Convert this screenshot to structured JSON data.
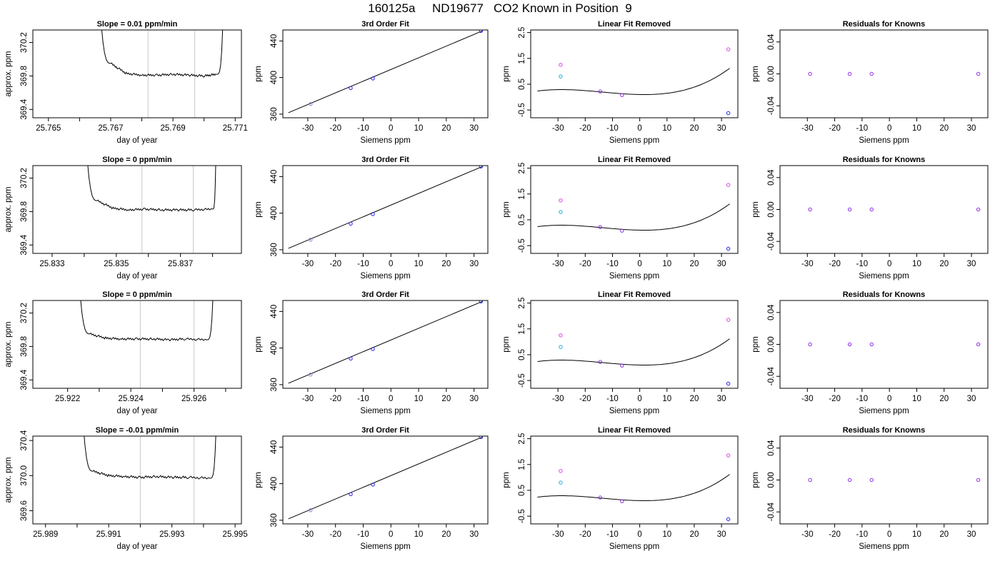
{
  "figure": {
    "title": "160125a     ND19677   CO2 Known in Position  9",
    "colors": {
      "line": "#000000",
      "frame": "#000000",
      "window_lines": "#c8c8c8",
      "point_blue": "#2222ee",
      "point_purple": "#8a2be2",
      "point_magenta": "#dd44dd",
      "point_cyan": "#22aadd",
      "point_violet": "#9a7de0"
    }
  },
  "chart_data": [
    {
      "type": "line",
      "row": 1,
      "panel": "trace",
      "title": "Slope =  0.01  ppm/min",
      "xlabel": "day of year",
      "ylabel": "approx. ppm",
      "xlim": [
        25.7645,
        25.7712
      ],
      "ylim": [
        369.3,
        370.35
      ],
      "xticks": [
        25.765,
        25.766,
        25.767,
        25.768,
        25.769,
        25.77,
        25.771
      ],
      "xtick_labels": [
        "25.765",
        "",
        "25.767",
        "",
        "25.769",
        "",
        "25.771"
      ],
      "yticks": [
        369.4,
        369.8,
        370.2
      ],
      "ytick_labels": [
        "369.4",
        "369.8",
        "370.2"
      ],
      "window": [
        25.7682,
        25.7697
      ],
      "x": [
        25.7667,
        25.767,
        25.7675,
        25.768,
        25.7685,
        25.769,
        25.7695,
        25.77,
        25.7704,
        25.7706
      ],
      "y": [
        370.4,
        369.95,
        369.83,
        369.81,
        369.81,
        369.82,
        369.81,
        369.8,
        369.82,
        370.4
      ]
    },
    {
      "type": "scatter",
      "row": 1,
      "panel": "fit",
      "title": "3rd Order Fit",
      "xlabel": "Siemens ppm",
      "ylabel": "ppm",
      "xlim": [
        -39,
        35
      ],
      "ylim": [
        356,
        452
      ],
      "xticks": [
        -30,
        -20,
        -10,
        0,
        10,
        20,
        30
      ],
      "yticks": [
        360,
        400,
        440
      ],
      "line_x": [
        -37,
        33
      ],
      "line_y": [
        361.5,
        451
      ],
      "points": [
        {
          "x": -29,
          "y": 371,
          "color": "point_violet"
        },
        {
          "x": -14.5,
          "y": 388.5,
          "color": "point_blue"
        },
        {
          "x": -6.5,
          "y": 399,
          "color": "point_blue"
        },
        {
          "x": 32.5,
          "y": 451,
          "color": "point_blue"
        }
      ]
    },
    {
      "type": "scatter",
      "row": 1,
      "panel": "linear_removed",
      "title": "Linear Fit Removed",
      "xlabel": "Siemens ppm",
      "ylabel": "ppm",
      "xlim": [
        -40,
        36
      ],
      "ylim": [
        -0.8,
        2.6
      ],
      "xticks": [
        -30,
        -20,
        -10,
        0,
        10,
        20,
        30
      ],
      "yticks": [
        -0.5,
        0.5,
        1.5,
        2.5
      ],
      "ytick_labels": [
        "-0.5",
        "0.5",
        "1.5",
        "2.5"
      ],
      "curve": [
        -8.214e-07,
        0.0005914,
        0.0,
        0.0
      ],
      "curve_coeffs": [
        0.1,
        -0.002,
        0.00055,
        1.35e-05
      ],
      "curve_xrange": [
        -37.5,
        33
      ],
      "points": [
        {
          "x": -29,
          "y": 1.25,
          "color": "point_magenta"
        },
        {
          "x": -29,
          "y": 0.8,
          "color": "point_cyan"
        },
        {
          "x": -14.5,
          "y": 0.22,
          "color": "point_purple"
        },
        {
          "x": -6.5,
          "y": 0.08,
          "color": "point_purple"
        },
        {
          "x": 32.5,
          "y": 1.85,
          "color": "point_magenta"
        },
        {
          "x": 32.5,
          "y": -0.62,
          "color": "point_blue"
        }
      ]
    },
    {
      "type": "scatter",
      "row": 1,
      "panel": "residuals",
      "title": "Residuals for Knowns",
      "xlabel": "Siemens ppm",
      "ylabel": "ppm",
      "xlim": [
        -40,
        36
      ],
      "ylim": [
        -0.055,
        0.055
      ],
      "xticks": [
        -30,
        -20,
        -10,
        0,
        10,
        20,
        30
      ],
      "yticks": [
        -0.04,
        0.0,
        0.04
      ],
      "ytick_labels": [
        "-0.04",
        "0.00",
        "0.04"
      ],
      "points": [
        {
          "x": -29,
          "y": 0,
          "color": "point_purple"
        },
        {
          "x": -14.5,
          "y": 0,
          "color": "point_purple"
        },
        {
          "x": -6.5,
          "y": 0,
          "color": "point_purple"
        },
        {
          "x": 32.5,
          "y": 0,
          "color": "point_purple"
        }
      ]
    },
    {
      "type": "line",
      "row": 2,
      "panel": "trace",
      "title": "Slope =  0  ppm/min",
      "xlabel": "day of year",
      "ylabel": "approx. ppm",
      "xlim": [
        25.8324,
        25.8389
      ],
      "ylim": [
        369.3,
        370.35
      ],
      "xticks": [
        25.833,
        25.834,
        25.835,
        25.836,
        25.837,
        25.838
      ],
      "xtick_labels": [
        "25.833",
        "",
        "25.835",
        "",
        "25.837",
        ""
      ],
      "yticks": [
        369.4,
        369.8,
        370.2
      ],
      "ytick_labels": [
        "369.4",
        "369.8",
        "370.2"
      ],
      "window": [
        25.8358,
        25.8374
      ],
      "x": [
        25.8341,
        25.8344,
        25.8349,
        25.8354,
        25.8359,
        25.8364,
        25.8369,
        25.8374,
        25.838,
        25.8381
      ],
      "y": [
        370.4,
        369.93,
        369.84,
        369.82,
        369.83,
        369.82,
        369.82,
        369.82,
        369.83,
        370.4
      ]
    },
    {
      "type": "scatter",
      "row": 2,
      "panel": "fit",
      "title": "3rd Order Fit",
      "xlabel": "Siemens ppm",
      "ylabel": "ppm",
      "xlim": [
        -39,
        35
      ],
      "ylim": [
        356,
        452
      ],
      "xticks": [
        -30,
        -20,
        -10,
        0,
        10,
        20,
        30
      ],
      "yticks": [
        360,
        400,
        440
      ],
      "line_x": [
        -37,
        33
      ],
      "line_y": [
        361.5,
        451
      ],
      "points": [
        {
          "x": -29,
          "y": 371,
          "color": "point_violet"
        },
        {
          "x": -14.5,
          "y": 388.5,
          "color": "point_blue"
        },
        {
          "x": -6.5,
          "y": 399,
          "color": "point_blue"
        },
        {
          "x": 32.5,
          "y": 451,
          "color": "point_blue"
        }
      ]
    },
    {
      "type": "scatter",
      "row": 2,
      "panel": "linear_removed",
      "title": "Linear Fit Removed",
      "xlabel": "Siemens ppm",
      "ylabel": "ppm",
      "xlim": [
        -40,
        36
      ],
      "ylim": [
        -0.8,
        2.6
      ],
      "xticks": [
        -30,
        -20,
        -10,
        0,
        10,
        20,
        30
      ],
      "yticks": [
        -0.5,
        0.5,
        1.5,
        2.5
      ],
      "ytick_labels": [
        "-0.5",
        "0.5",
        "1.5",
        "2.5"
      ],
      "curve_coeffs": [
        0.1,
        -0.002,
        0.00055,
        1.35e-05
      ],
      "curve_xrange": [
        -37.5,
        33
      ],
      "points": [
        {
          "x": -29,
          "y": 1.25,
          "color": "point_magenta"
        },
        {
          "x": -29,
          "y": 0.8,
          "color": "point_cyan"
        },
        {
          "x": -14.5,
          "y": 0.22,
          "color": "point_purple"
        },
        {
          "x": -6.5,
          "y": 0.08,
          "color": "point_purple"
        },
        {
          "x": 32.5,
          "y": 1.85,
          "color": "point_magenta"
        },
        {
          "x": 32.5,
          "y": -0.62,
          "color": "point_blue"
        }
      ]
    },
    {
      "type": "scatter",
      "row": 2,
      "panel": "residuals",
      "title": "Residuals for Knowns",
      "xlabel": "Siemens ppm",
      "ylabel": "ppm",
      "xlim": [
        -40,
        36
      ],
      "ylim": [
        -0.055,
        0.055
      ],
      "xticks": [
        -30,
        -20,
        -10,
        0,
        10,
        20,
        30
      ],
      "yticks": [
        -0.04,
        0.0,
        0.04
      ],
      "ytick_labels": [
        "-0.04",
        "0.00",
        "0.04"
      ],
      "points": [
        {
          "x": -29,
          "y": 0,
          "color": "point_purple"
        },
        {
          "x": -14.5,
          "y": 0,
          "color": "point_purple"
        },
        {
          "x": -6.5,
          "y": 0,
          "color": "point_purple"
        },
        {
          "x": 32.5,
          "y": 0,
          "color": "point_purple"
        }
      ]
    },
    {
      "type": "line",
      "row": 3,
      "panel": "trace",
      "title": "Slope =  0  ppm/min",
      "xlabel": "day of year",
      "ylabel": "approx. ppm",
      "xlim": [
        25.9209,
        25.9275
      ],
      "ylim": [
        369.3,
        370.35
      ],
      "xticks": [
        25.922,
        25.923,
        25.924,
        25.925,
        25.926,
        25.927
      ],
      "xtick_labels": [
        "25.922",
        "",
        "25.924",
        "",
        "25.926",
        ""
      ],
      "yticks": [
        369.4,
        369.8,
        370.2
      ],
      "ytick_labels": [
        "369.4",
        "369.8",
        "370.2"
      ],
      "window": [
        25.9243,
        25.926
      ],
      "x": [
        25.9224,
        25.9227,
        25.9232,
        25.9237,
        25.9242,
        25.9247,
        25.9252,
        25.9257,
        25.9264,
        25.9266
      ],
      "y": [
        370.4,
        369.95,
        369.9,
        369.89,
        369.89,
        369.89,
        369.88,
        369.89,
        369.88,
        370.4
      ]
    },
    {
      "type": "scatter",
      "row": 3,
      "panel": "fit",
      "title": "3rd Order Fit",
      "xlabel": "Siemens ppm",
      "ylabel": "ppm",
      "xlim": [
        -39,
        35
      ],
      "ylim": [
        356,
        452
      ],
      "xticks": [
        -30,
        -20,
        -10,
        0,
        10,
        20,
        30
      ],
      "yticks": [
        360,
        400,
        440
      ],
      "line_x": [
        -37,
        33
      ],
      "line_y": [
        361.5,
        451
      ],
      "points": [
        {
          "x": -29,
          "y": 371,
          "color": "point_violet"
        },
        {
          "x": -14.5,
          "y": 388.5,
          "color": "point_blue"
        },
        {
          "x": -6.5,
          "y": 399,
          "color": "point_blue"
        },
        {
          "x": 32.5,
          "y": 451,
          "color": "point_blue"
        }
      ]
    },
    {
      "type": "scatter",
      "row": 3,
      "panel": "linear_removed",
      "title": "Linear Fit Removed",
      "xlabel": "Siemens ppm",
      "ylabel": "ppm",
      "xlim": [
        -40,
        36
      ],
      "ylim": [
        -0.8,
        2.6
      ],
      "xticks": [
        -30,
        -20,
        -10,
        0,
        10,
        20,
        30
      ],
      "yticks": [
        -0.5,
        0.5,
        1.5,
        2.5
      ],
      "ytick_labels": [
        "-0.5",
        "0.5",
        "1.5",
        "2.5"
      ],
      "curve_coeffs": [
        0.1,
        -0.002,
        0.00055,
        1.35e-05
      ],
      "curve_xrange": [
        -37.5,
        33
      ],
      "points": [
        {
          "x": -29,
          "y": 1.25,
          "color": "point_magenta"
        },
        {
          "x": -29,
          "y": 0.8,
          "color": "point_cyan"
        },
        {
          "x": -14.5,
          "y": 0.22,
          "color": "point_purple"
        },
        {
          "x": -6.5,
          "y": 0.08,
          "color": "point_purple"
        },
        {
          "x": 32.5,
          "y": 1.85,
          "color": "point_magenta"
        },
        {
          "x": 32.5,
          "y": -0.62,
          "color": "point_blue"
        }
      ]
    },
    {
      "type": "scatter",
      "row": 3,
      "panel": "residuals",
      "title": "Residuals for Knowns",
      "xlabel": "Siemens ppm",
      "ylabel": "ppm",
      "xlim": [
        -40,
        36
      ],
      "ylim": [
        -0.055,
        0.055
      ],
      "xticks": [
        -30,
        -20,
        -10,
        0,
        10,
        20,
        30
      ],
      "yticks": [
        -0.04,
        0.0,
        0.04
      ],
      "ytick_labels": [
        "-0.04",
        "0.00",
        "0.04"
      ],
      "points": [
        {
          "x": -29,
          "y": 0,
          "color": "point_purple"
        },
        {
          "x": -14.5,
          "y": 0,
          "color": "point_purple"
        },
        {
          "x": -6.5,
          "y": 0,
          "color": "point_purple"
        },
        {
          "x": 32.5,
          "y": 0,
          "color": "point_purple"
        }
      ]
    },
    {
      "type": "line",
      "row": 4,
      "panel": "trace",
      "title": "Slope =  -0.01  ppm/min",
      "xlabel": "day of year",
      "ylabel": "approx. ppm",
      "xlim": [
        25.9886,
        25.9952
      ],
      "ylim": [
        369.45,
        370.45
      ],
      "xticks": [
        25.989,
        25.99,
        25.991,
        25.992,
        25.993,
        25.994,
        25.995
      ],
      "xtick_labels": [
        "25.989",
        "",
        "25.991",
        "",
        "25.993",
        "",
        "25.995"
      ],
      "yticks": [
        369.6,
        370.0,
        370.4
      ],
      "ytick_labels": [
        "369.6",
        "370.0",
        "370.4"
      ],
      "window": [
        25.992,
        25.9937
      ],
      "x": [
        25.9902,
        25.9905,
        25.991,
        25.9915,
        25.992,
        25.9925,
        25.993,
        25.9935,
        25.9942,
        25.9944
      ],
      "y": [
        370.55,
        370.05,
        370.0,
        369.99,
        369.98,
        369.99,
        369.98,
        369.98,
        369.97,
        370.55
      ]
    },
    {
      "type": "scatter",
      "row": 4,
      "panel": "fit",
      "title": "3rd Order Fit",
      "xlabel": "Siemens ppm",
      "ylabel": "ppm",
      "xlim": [
        -39,
        35
      ],
      "ylim": [
        356,
        452
      ],
      "xticks": [
        -30,
        -20,
        -10,
        0,
        10,
        20,
        30
      ],
      "yticks": [
        360,
        400,
        440
      ],
      "line_x": [
        -37,
        33
      ],
      "line_y": [
        361.5,
        451
      ],
      "points": [
        {
          "x": -29,
          "y": 371,
          "color": "point_violet"
        },
        {
          "x": -14.5,
          "y": 388.5,
          "color": "point_blue"
        },
        {
          "x": -6.5,
          "y": 399,
          "color": "point_blue"
        },
        {
          "x": 32.5,
          "y": 451,
          "color": "point_blue"
        }
      ]
    },
    {
      "type": "scatter",
      "row": 4,
      "panel": "linear_removed",
      "title": "Linear Fit Removed",
      "xlabel": "Siemens ppm",
      "ylabel": "ppm",
      "xlim": [
        -40,
        36
      ],
      "ylim": [
        -0.8,
        2.6
      ],
      "xticks": [
        -30,
        -20,
        -10,
        0,
        10,
        20,
        30
      ],
      "yticks": [
        -0.5,
        0.5,
        1.5,
        2.5
      ],
      "ytick_labels": [
        "-0.5",
        "0.5",
        "1.5",
        "2.5"
      ],
      "curve_coeffs": [
        0.1,
        -0.002,
        0.00055,
        1.35e-05
      ],
      "curve_xrange": [
        -37.5,
        33
      ],
      "points": [
        {
          "x": -29,
          "y": 1.25,
          "color": "point_magenta"
        },
        {
          "x": -29,
          "y": 0.8,
          "color": "point_cyan"
        },
        {
          "x": -14.5,
          "y": 0.22,
          "color": "point_purple"
        },
        {
          "x": -6.5,
          "y": 0.08,
          "color": "point_purple"
        },
        {
          "x": 32.5,
          "y": 1.85,
          "color": "point_magenta"
        },
        {
          "x": 32.5,
          "y": -0.62,
          "color": "point_blue"
        }
      ]
    },
    {
      "type": "scatter",
      "row": 4,
      "panel": "residuals",
      "title": "Residuals for Knowns",
      "xlabel": "Siemens ppm",
      "ylabel": "ppm",
      "xlim": [
        -40,
        36
      ],
      "ylim": [
        -0.055,
        0.055
      ],
      "xticks": [
        -30,
        -20,
        -10,
        0,
        10,
        20,
        30
      ],
      "yticks": [
        -0.04,
        0.0,
        0.04
      ],
      "ytick_labels": [
        "-0.04",
        "0.00",
        "0.04"
      ],
      "points": [
        {
          "x": -29,
          "y": 0,
          "color": "point_purple"
        },
        {
          "x": -14.5,
          "y": 0,
          "color": "point_purple"
        },
        {
          "x": -6.5,
          "y": 0,
          "color": "point_purple"
        },
        {
          "x": 32.5,
          "y": 0,
          "color": "point_purple"
        }
      ]
    }
  ]
}
